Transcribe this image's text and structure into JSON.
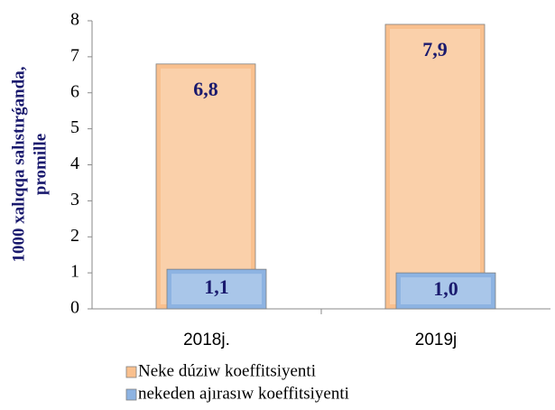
{
  "chart_data": {
    "type": "bar",
    "ylabel": [
      "1000 xalıqqa salıstırǵanda,",
      "promille"
    ],
    "categories": [
      "2018j.",
      "2019j"
    ],
    "series": [
      {
        "name": "Neke dúziw koeffitsiyenti",
        "color": "#f9c08e",
        "values": [
          6.8,
          7.9
        ],
        "value_labels": [
          "6,8",
          "7,9"
        ]
      },
      {
        "name": "nekeden ajırasıw koeffitsiyenti",
        "color": "#8db3e2",
        "values": [
          1.1,
          1.0
        ],
        "value_labels": [
          "1,1",
          "1,0"
        ]
      }
    ],
    "ylim": [
      0,
      8
    ],
    "yticks": [
      0,
      1,
      2,
      3,
      4,
      5,
      6,
      7,
      8
    ]
  }
}
